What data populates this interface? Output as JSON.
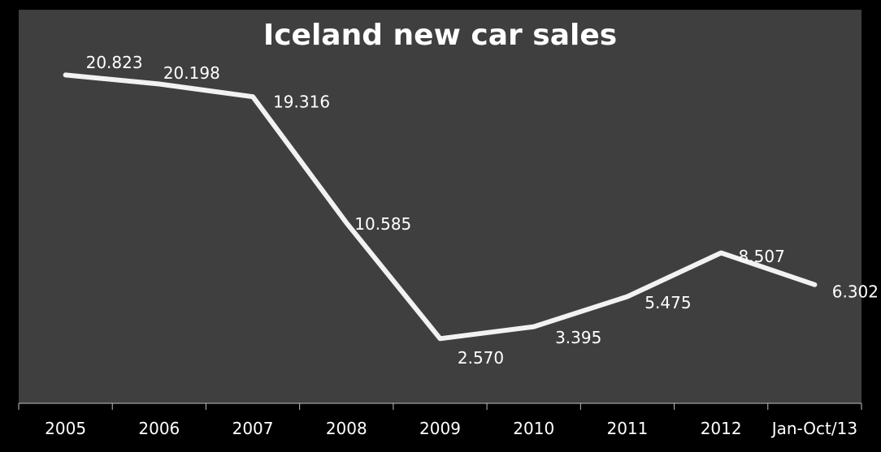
{
  "chart_data": {
    "type": "line",
    "title": "Iceland new car sales",
    "categories": [
      "2005",
      "2006",
      "2007",
      "2008",
      "2009",
      "2010",
      "2011",
      "2012",
      "Jan-Oct/13"
    ],
    "series": [
      {
        "values": [
          20.823,
          20.198,
          19.316,
          10.585,
          2.57,
          3.395,
          5.475,
          8.507,
          6.302
        ],
        "labels": [
          "20.823",
          "20.198",
          "19.316",
          "10.585",
          "2.570",
          "3.395",
          "5.475",
          "8.507",
          "6.302"
        ]
      }
    ],
    "xlabel": "",
    "ylabel": "",
    "ylim": [
      0,
      25
    ],
    "grid": false,
    "legend": "none",
    "colors": {
      "background": "#000000",
      "plot_area": "#3f3f3f",
      "line": "#f2f2f2",
      "text": "#ffffff",
      "axis": "#bfbfbf"
    }
  }
}
